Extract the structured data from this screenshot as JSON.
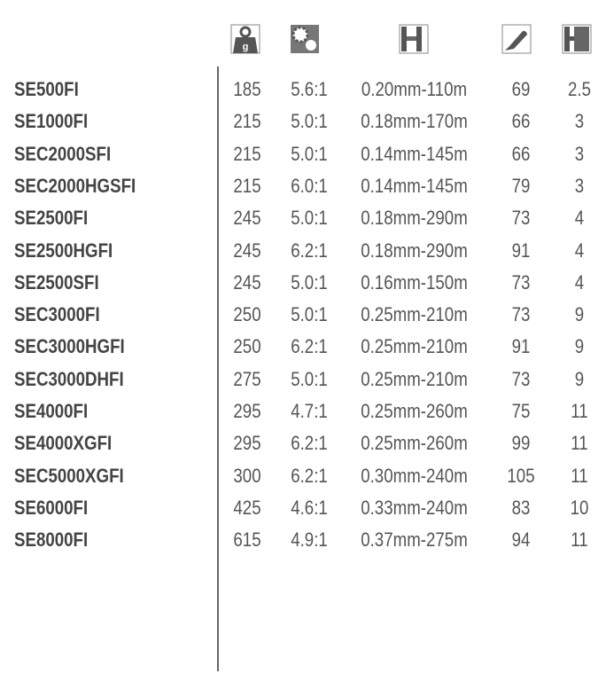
{
  "header_icons": [
    "weight-icon",
    "gear-ratio-icon",
    "line-capacity-icon",
    "retrieve-icon",
    "drag-icon"
  ],
  "weight_icon_letter": "g",
  "rows": [
    {
      "model": "SE500FI",
      "weight": "185",
      "ratio": "5.6:1",
      "line": "0.20mm-110m",
      "retrieve": "69",
      "drag": "2.5"
    },
    {
      "model": "SE1000FI",
      "weight": "215",
      "ratio": "5.0:1",
      "line": "0.18mm-170m",
      "retrieve": "66",
      "drag": "3"
    },
    {
      "model": "SEC2000SFI",
      "weight": "215",
      "ratio": "5.0:1",
      "line": "0.14mm-145m",
      "retrieve": "66",
      "drag": "3"
    },
    {
      "model": "SEC2000HGSFI",
      "weight": "215",
      "ratio": "6.0:1",
      "line": "0.14mm-145m",
      "retrieve": "79",
      "drag": "3"
    },
    {
      "model": "SE2500FI",
      "weight": "245",
      "ratio": "5.0:1",
      "line": "0.18mm-290m",
      "retrieve": "73",
      "drag": "4"
    },
    {
      "model": "SE2500HGFI",
      "weight": "245",
      "ratio": "6.2:1",
      "line": "0.18mm-290m",
      "retrieve": "91",
      "drag": "4"
    },
    {
      "model": "SE2500SFI",
      "weight": "245",
      "ratio": "5.0:1",
      "line": "0.16mm-150m",
      "retrieve": "73",
      "drag": "4"
    },
    {
      "model": "SEC3000FI",
      "weight": "250",
      "ratio": "5.0:1",
      "line": "0.25mm-210m",
      "retrieve": "73",
      "drag": "9"
    },
    {
      "model": "SEC3000HGFI",
      "weight": "250",
      "ratio": "6.2:1",
      "line": "0.25mm-210m",
      "retrieve": "91",
      "drag": "9"
    },
    {
      "model": "SEC3000DHFI",
      "weight": "275",
      "ratio": "5.0:1",
      "line": "0.25mm-210m",
      "retrieve": "73",
      "drag": "9"
    },
    {
      "model": "SE4000FI",
      "weight": "295",
      "ratio": "4.7:1",
      "line": "0.25mm-260m",
      "retrieve": "75",
      "drag": "11"
    },
    {
      "model": "SE4000XGFI",
      "weight": "295",
      "ratio": "6.2:1",
      "line": "0.25mm-260m",
      "retrieve": "99",
      "drag": "11"
    },
    {
      "model": "SEC5000XGFI",
      "weight": "300",
      "ratio": "6.2:1",
      "line": "0.30mm-240m",
      "retrieve": "105",
      "drag": "11"
    },
    {
      "model": "SE6000FI",
      "weight": "425",
      "ratio": "4.6:1",
      "line": "0.33mm-240m",
      "retrieve": "83",
      "drag": "10"
    },
    {
      "model": "SE8000FI",
      "weight": "615",
      "ratio": "4.9:1",
      "line": "0.37mm-275m",
      "retrieve": "94",
      "drag": "11"
    }
  ]
}
